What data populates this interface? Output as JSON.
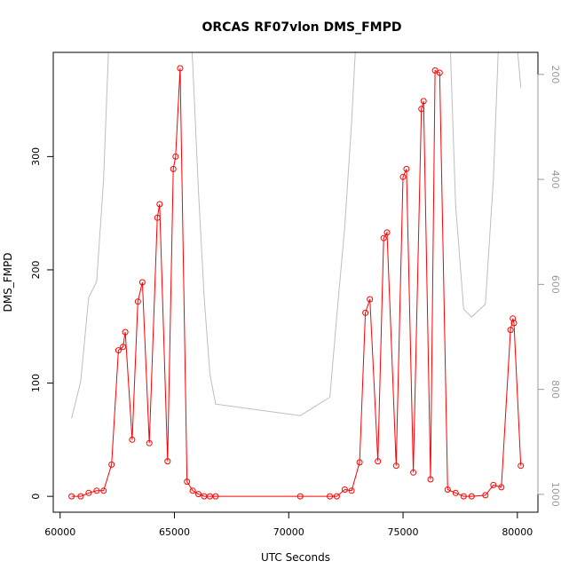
{
  "chart_data": {
    "type": "line",
    "title": "ORCAS RF07vlon DMS_FMPD",
    "xlabel": "UTC Seconds",
    "ylabel": "DMS_FMPD",
    "xlim": [
      59700,
      80900
    ],
    "ylim": [
      -14,
      392
    ],
    "xticks": [
      60000,
      65000,
      70000,
      75000,
      80000
    ],
    "yticks": [
      0,
      100,
      200,
      300
    ],
    "grid": false,
    "series": [
      {
        "style": "line-with-points",
        "color": "#ff0000",
        "x": [
          60500,
          60900,
          61250,
          61600,
          61900,
          62250,
          62550,
          62750,
          62850,
          63150,
          63400,
          63600,
          63900,
          64250,
          64350,
          64700,
          64950,
          65050,
          65250,
          65550,
          65800,
          66050,
          66300,
          66550,
          66800,
          70500,
          71800,
          72100,
          72450,
          72750,
          73100,
          73350,
          73550,
          73900,
          74150,
          74300,
          74700,
          75000,
          75150,
          75450,
          75800,
          75900,
          76200,
          76400,
          76600,
          76950,
          77300,
          77650,
          78000,
          78600,
          78950,
          79300,
          79700,
          79800,
          79850,
          80150
        ],
        "values": [
          0,
          0,
          3,
          5,
          5,
          28,
          129,
          132,
          145,
          50,
          172,
          189,
          47,
          246,
          258,
          31,
          289,
          300,
          378,
          13,
          5,
          2,
          0,
          0,
          0,
          0,
          0,
          0,
          6,
          5,
          30,
          162,
          174,
          31,
          228,
          233,
          27,
          282,
          289,
          21,
          342,
          349,
          15,
          376,
          374,
          6,
          3,
          0,
          0,
          1,
          10,
          8,
          147,
          157,
          153,
          27
        ]
      },
      {
        "style": "line",
        "color": "#bebebe",
        "axis": "right",
        "x": [
          60500,
          60900,
          61250,
          61600,
          61900,
          62250,
          65550,
          65800,
          66050,
          66300,
          66550,
          66800,
          70500,
          71800,
          72100,
          72450,
          72750,
          73100,
          76950,
          77300,
          77650,
          78000,
          78600,
          78950,
          79300,
          79700,
          80150
        ],
        "values": [
          855,
          785,
          625,
          595,
          400,
          0,
          0,
          180,
          420,
          625,
          770,
          828,
          850,
          815,
          660,
          490,
          290,
          0,
          0,
          450,
          647,
          662,
          638,
          400,
          0,
          0,
          225
        ]
      }
    ],
    "right_axis": {
      "ticks": [
        200,
        400,
        600,
        800,
        1000
      ],
      "ylim": [
        1034,
        158
      ]
    }
  }
}
